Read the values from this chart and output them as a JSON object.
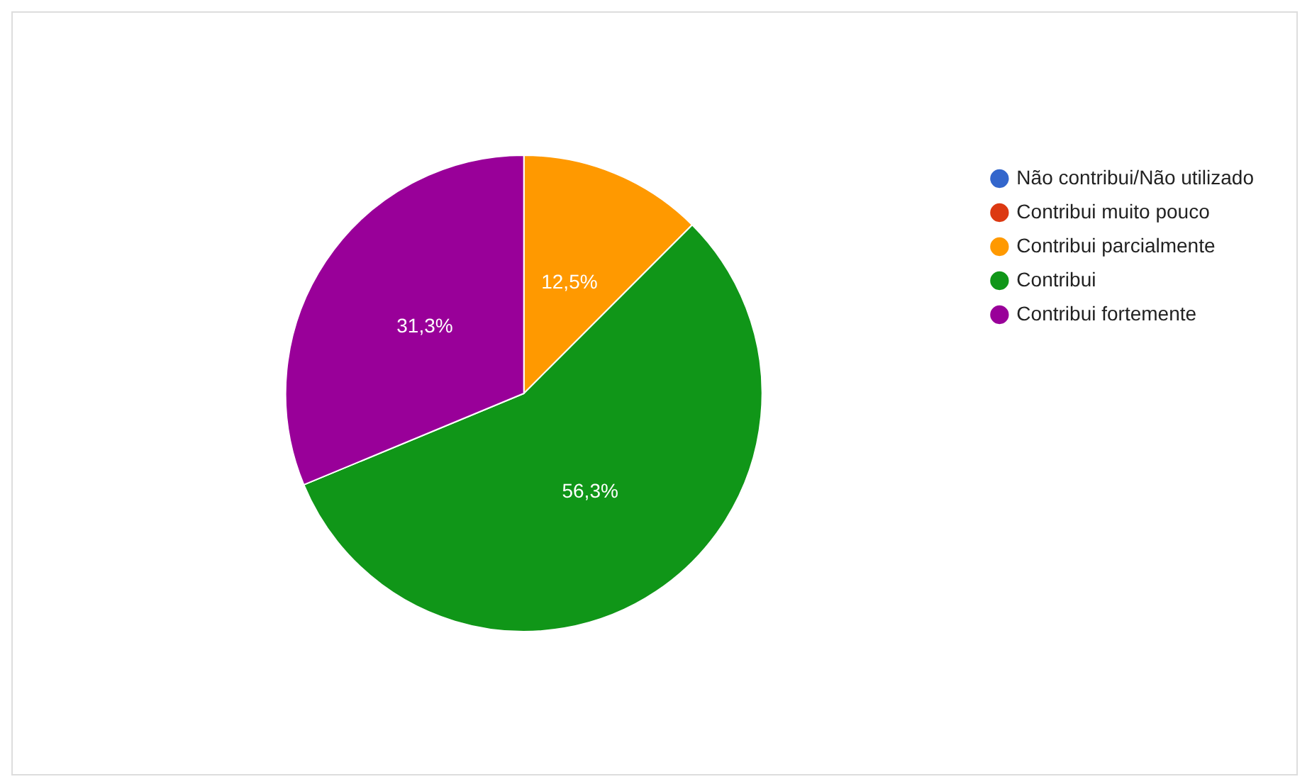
{
  "chart_data": {
    "type": "pie",
    "categories": [
      "Não contribui/Não utilizado",
      "Contribui muito pouco",
      "Contribui parcialmente",
      "Contribui",
      "Contribui fortemente"
    ],
    "values": [
      0,
      0,
      12.5,
      56.3,
      31.3
    ],
    "colors": [
      "#3366cc",
      "#dc3912",
      "#ff9900",
      "#109618",
      "#990099"
    ],
    "value_labels": [
      null,
      null,
      "12,5%",
      "56,3%",
      "31,3%"
    ],
    "legend": "right"
  }
}
